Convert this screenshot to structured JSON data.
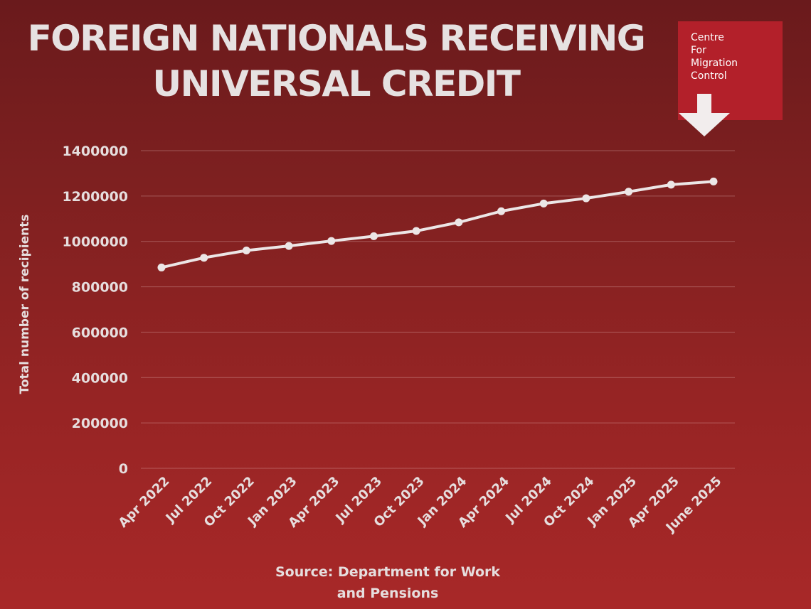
{
  "title_lines": [
    "FOREIGN NATIONALS RECEIVING",
    "UNIVERSAL CREDIT"
  ],
  "logo": {
    "lines": [
      "Centre",
      "For",
      "Migration",
      "Control"
    ],
    "color": "#b3202a",
    "icon": "down-arrow-icon"
  },
  "source_lines": [
    "Source: Department for Work",
    "and Pensions"
  ],
  "chart_data": {
    "type": "line",
    "title": "FOREIGN NATIONALS RECEIVING UNIVERSAL CREDIT",
    "xlabel": "",
    "ylabel": "Total number of recipients",
    "ylim": [
      0,
      1400000
    ],
    "yticks": [
      "0",
      "200000",
      "400000",
      "600000",
      "800000",
      "1000000",
      "1200000",
      "1400000"
    ],
    "grid": true,
    "legend": "none",
    "categories": [
      "Apr 2022",
      "Jul 2022",
      "Oct 2022",
      "Jan 2023",
      "Apr 2023",
      "Jul 2023",
      "Oct 2023",
      "Jan 2024",
      "Apr 2024",
      "Jul 2024",
      "Oct 2024",
      "Jan 2025",
      "Apr 2025",
      "June 2025"
    ],
    "series": [
      {
        "values": [
          885000,
          928000,
          960000,
          980000,
          1002000,
          1023000,
          1046000,
          1084000,
          1133000,
          1167000,
          1190000,
          1219000,
          1250000,
          1264000
        ],
        "color": "#ece6e6"
      }
    ]
  }
}
